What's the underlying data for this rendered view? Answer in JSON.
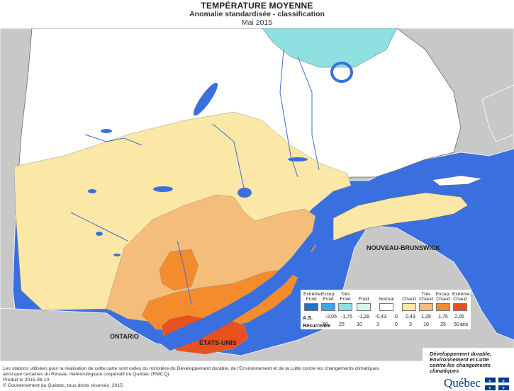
{
  "header": {
    "title": "TEMPÉRATURE MOYENNE",
    "subtitle": "Anomalie standardisée - classification",
    "date": "Mai 2015"
  },
  "map_labels": {
    "ontario": "ONTARIO",
    "etats_unis": "ÉTATS-UNIS",
    "nouveau_brunswick": "NOUVEAU-BRUNSWICK"
  },
  "legend": {
    "classes": [
      {
        "label_top": "Extrême.",
        "label_bottom": "Froid",
        "color": "#2a6fc4"
      },
      {
        "label_top": "Excep.",
        "label_bottom": "Froid",
        "color": "#3fa7e6"
      },
      {
        "label_top": "Très",
        "label_bottom": "Froid",
        "color": "#8fe0e0"
      },
      {
        "label_top": "",
        "label_bottom": "Froid",
        "color": "#d6f3f3"
      },
      {
        "label_top": "",
        "label_bottom": "Normal",
        "color": "#ffffff"
      },
      {
        "label_top": "",
        "label_bottom": "Chaud",
        "color": "#fbe7a6"
      },
      {
        "label_top": "Très",
        "label_bottom": "Chaud",
        "color": "#f5bd7a"
      },
      {
        "label_top": "Excep.",
        "label_bottom": "Chaud",
        "color": "#f48b2d"
      },
      {
        "label_top": "Extrême.",
        "label_bottom": "Chaud",
        "color": "#e8501e"
      }
    ],
    "as_label": "A.S.",
    "as_values": [
      "-2,05",
      "-1,75",
      "-1,28",
      "-0,43",
      "0",
      "0,43",
      "1,28",
      "1,75",
      "2,05"
    ],
    "recurrence_label": "Récurrence",
    "recurrence_values": [
      "50",
      "25",
      "10",
      "3",
      "0",
      "3",
      "10",
      "25",
      "50"
    ],
    "recurrence_unit": "ans"
  },
  "footer": {
    "note_line1": "Les stations utilisées pour la réalisation de cette carte sont celles du ministère du Développement durable, de l'Environnement et de la Lutte contre les changements climatiques",
    "note_line2": "ainsi que certaines du Réseau météorologique coopératif du Québec (RMCQ).",
    "produced": "Produit le 2015-06-10",
    "copyright": "© Gouvernement du Québec, tous droits réservés, 2015"
  },
  "logo": {
    "ministry_line1": "Développement durable,",
    "ministry_line2": "Environnement et Lutte",
    "ministry_line3": "contre les changements",
    "ministry_line4": "climatiques",
    "wordmark": "Québec"
  },
  "colors": {
    "land_other": "#c8c8c8",
    "water": "#3a6fe0",
    "normal": "#ffffff",
    "chaud": "#fbe7a6",
    "tres_chaud": "#f5bd7a",
    "excep_chaud": "#f48b2d",
    "extreme_chaud": "#e8501e",
    "tres_froid": "#8fe0e0"
  }
}
